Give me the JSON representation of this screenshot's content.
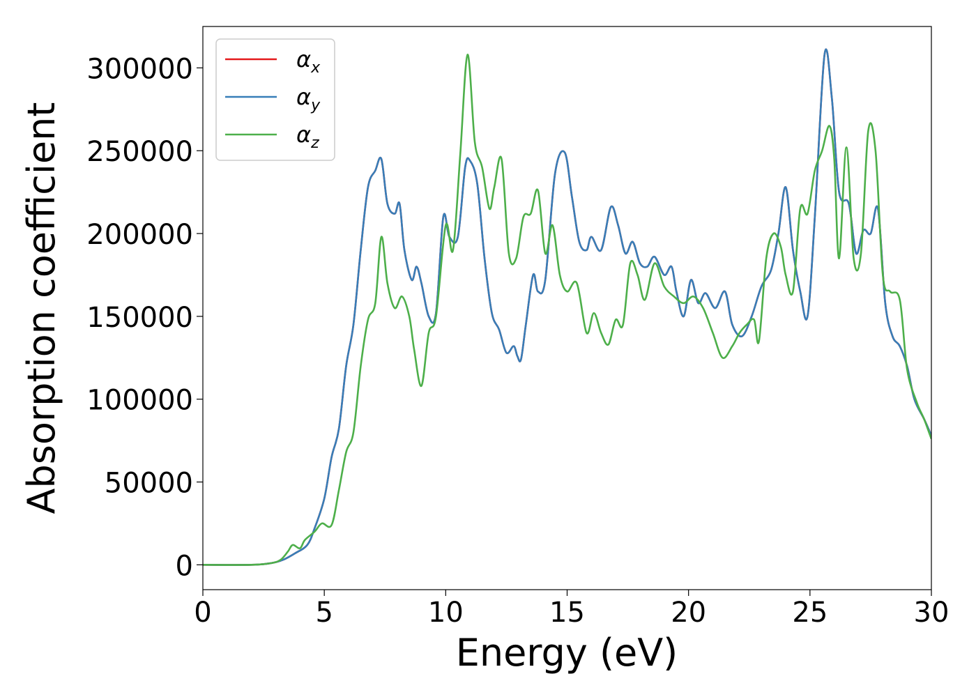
{
  "chart_data": {
    "type": "line",
    "title": "",
    "xlabel": "Energy (eV)",
    "ylabel": "Absorption coefficient",
    "xlim": [
      0,
      30
    ],
    "ylim": [
      -15000,
      325000
    ],
    "xticks": [
      0,
      5,
      10,
      15,
      20,
      25,
      30
    ],
    "xtick_labels": [
      "0",
      "5",
      "10",
      "15",
      "20",
      "25",
      "30"
    ],
    "yticks": [
      0,
      50000,
      100000,
      150000,
      200000,
      250000,
      300000
    ],
    "ytick_labels": [
      "0",
      "50000",
      "100000",
      "150000",
      "200000",
      "250000",
      "300000"
    ],
    "grid": false,
    "legend_position": "top-left",
    "series": [
      {
        "name": "αx",
        "symbol": "α",
        "subscript": "x",
        "color": "#e41a1c",
        "x": [
          0,
          2,
          2.8,
          3.3,
          3.8,
          4.3,
          4.6,
          5.0,
          5.3,
          5.6,
          5.9,
          6.2,
          6.5,
          6.8,
          7.1,
          7.35,
          7.6,
          7.9,
          8.1,
          8.3,
          8.6,
          8.8,
          9.0,
          9.3,
          9.6,
          9.9,
          10.15,
          10.5,
          10.8,
          11.0,
          11.3,
          11.6,
          11.9,
          12.2,
          12.5,
          12.8,
          12.95,
          13.1,
          13.3,
          13.6,
          13.8,
          14.1,
          14.5,
          14.9,
          15.2,
          15.5,
          15.8,
          16.0,
          16.4,
          16.8,
          17.1,
          17.4,
          17.7,
          18.0,
          18.3,
          18.6,
          19.0,
          19.3,
          19.5,
          19.8,
          20.1,
          20.4,
          20.7,
          21.1,
          21.5,
          21.8,
          22.2,
          22.6,
          23.0,
          23.4,
          23.7,
          24.0,
          24.3,
          24.6,
          24.9,
          25.2,
          25.6,
          25.9,
          26.2,
          26.6,
          26.9,
          27.2,
          27.5,
          27.8,
          28.1,
          28.4,
          28.7,
          29.0,
          29.3,
          29.7,
          30.0
        ],
        "values": [
          0,
          0,
          1000,
          3000,
          7000,
          12000,
          22000,
          40000,
          65000,
          82000,
          120000,
          145000,
          190000,
          228000,
          238000,
          245000,
          218000,
          212000,
          218000,
          190000,
          172000,
          180000,
          170000,
          150000,
          152000,
          210000,
          198000,
          198000,
          240000,
          244000,
          230000,
          185000,
          152000,
          142000,
          128000,
          132000,
          126000,
          124000,
          145000,
          175000,
          165000,
          172000,
          236000,
          249000,
          222000,
          195000,
          190000,
          198000,
          190000,
          216000,
          205000,
          188000,
          195000,
          182000,
          180000,
          186000,
          175000,
          180000,
          165000,
          150000,
          172000,
          158000,
          164000,
          155000,
          165000,
          145000,
          138000,
          150000,
          168000,
          178000,
          200000,
          228000,
          190000,
          165000,
          150000,
          210000,
          308000,
          282000,
          225000,
          218000,
          188000,
          202000,
          200000,
          215000,
          158000,
          138000,
          132000,
          120000,
          100000,
          88000,
          78000
        ]
      },
      {
        "name": "αy",
        "symbol": "α",
        "subscript": "y",
        "color": "#377eb8",
        "x": [
          0,
          2,
          2.8,
          3.3,
          3.8,
          4.3,
          4.6,
          5.0,
          5.3,
          5.6,
          5.9,
          6.2,
          6.5,
          6.8,
          7.1,
          7.35,
          7.6,
          7.9,
          8.1,
          8.3,
          8.6,
          8.8,
          9.0,
          9.3,
          9.6,
          9.9,
          10.15,
          10.5,
          10.8,
          11.0,
          11.3,
          11.6,
          11.9,
          12.2,
          12.5,
          12.8,
          12.95,
          13.1,
          13.3,
          13.6,
          13.8,
          14.1,
          14.5,
          14.9,
          15.2,
          15.5,
          15.8,
          16.0,
          16.4,
          16.8,
          17.1,
          17.4,
          17.7,
          18.0,
          18.3,
          18.6,
          19.0,
          19.3,
          19.5,
          19.8,
          20.1,
          20.4,
          20.7,
          21.1,
          21.5,
          21.8,
          22.2,
          22.6,
          23.0,
          23.4,
          23.7,
          24.0,
          24.3,
          24.6,
          24.9,
          25.2,
          25.6,
          25.9,
          26.2,
          26.6,
          26.9,
          27.2,
          27.5,
          27.8,
          28.1,
          28.4,
          28.7,
          29.0,
          29.3,
          29.7,
          30.0
        ],
        "values": [
          0,
          0,
          1000,
          3000,
          7000,
          12000,
          22000,
          40000,
          65000,
          82000,
          120000,
          145000,
          190000,
          228000,
          238000,
          245000,
          218000,
          212000,
          218000,
          190000,
          172000,
          180000,
          170000,
          150000,
          152000,
          210000,
          198000,
          198000,
          240000,
          244000,
          230000,
          185000,
          152000,
          142000,
          128000,
          132000,
          126000,
          124000,
          145000,
          175000,
          165000,
          172000,
          236000,
          249000,
          222000,
          195000,
          190000,
          198000,
          190000,
          216000,
          205000,
          188000,
          195000,
          182000,
          180000,
          186000,
          175000,
          180000,
          165000,
          150000,
          172000,
          158000,
          164000,
          155000,
          165000,
          145000,
          138000,
          150000,
          168000,
          178000,
          200000,
          228000,
          190000,
          165000,
          150000,
          210000,
          308000,
          282000,
          225000,
          218000,
          188000,
          202000,
          200000,
          215000,
          158000,
          138000,
          132000,
          120000,
          100000,
          88000,
          78000
        ]
      },
      {
        "name": "αz",
        "symbol": "α",
        "subscript": "z",
        "color": "#4daf4a",
        "x": [
          0,
          2,
          2.8,
          3.2,
          3.5,
          3.7,
          4.0,
          4.2,
          4.6,
          4.9,
          5.3,
          5.6,
          5.9,
          6.2,
          6.5,
          6.8,
          7.1,
          7.35,
          7.6,
          7.9,
          8.2,
          8.5,
          8.7,
          9.0,
          9.3,
          9.6,
          10.0,
          10.3,
          10.6,
          10.9,
          11.2,
          11.5,
          11.8,
          12.0,
          12.3,
          12.6,
          12.9,
          13.2,
          13.5,
          13.8,
          14.1,
          14.4,
          14.7,
          15.0,
          15.4,
          15.8,
          16.1,
          16.4,
          16.7,
          17.0,
          17.3,
          17.6,
          17.9,
          18.2,
          18.6,
          19.0,
          19.4,
          19.8,
          20.2,
          20.6,
          21.0,
          21.4,
          21.8,
          22.1,
          22.4,
          22.7,
          22.9,
          23.2,
          23.5,
          23.8,
          24.0,
          24.3,
          24.6,
          24.9,
          25.2,
          25.5,
          25.8,
          26.0,
          26.2,
          26.5,
          26.8,
          27.1,
          27.4,
          27.7,
          28.0,
          28.3,
          28.7,
          29.0,
          29.4,
          29.7,
          30.0
        ],
        "values": [
          0,
          0,
          1000,
          3000,
          8000,
          12000,
          10000,
          15000,
          20000,
          25000,
          24000,
          45000,
          68000,
          80000,
          120000,
          148000,
          158000,
          198000,
          170000,
          155000,
          162000,
          150000,
          130000,
          108000,
          140000,
          150000,
          205000,
          190000,
          248000,
          308000,
          255000,
          240000,
          215000,
          228000,
          245000,
          188000,
          185000,
          210000,
          212000,
          226000,
          188000,
          205000,
          175000,
          165000,
          170000,
          140000,
          152000,
          140000,
          133000,
          148000,
          145000,
          182000,
          175000,
          160000,
          182000,
          168000,
          162000,
          158000,
          162000,
          155000,
          140000,
          125000,
          132000,
          140000,
          145000,
          148000,
          135000,
          185000,
          200000,
          192000,
          175000,
          165000,
          215000,
          212000,
          238000,
          250000,
          265000,
          245000,
          185000,
          252000,
          185000,
          188000,
          262000,
          250000,
          175000,
          165000,
          160000,
          118000,
          98000,
          88000,
          76000
        ]
      }
    ]
  }
}
